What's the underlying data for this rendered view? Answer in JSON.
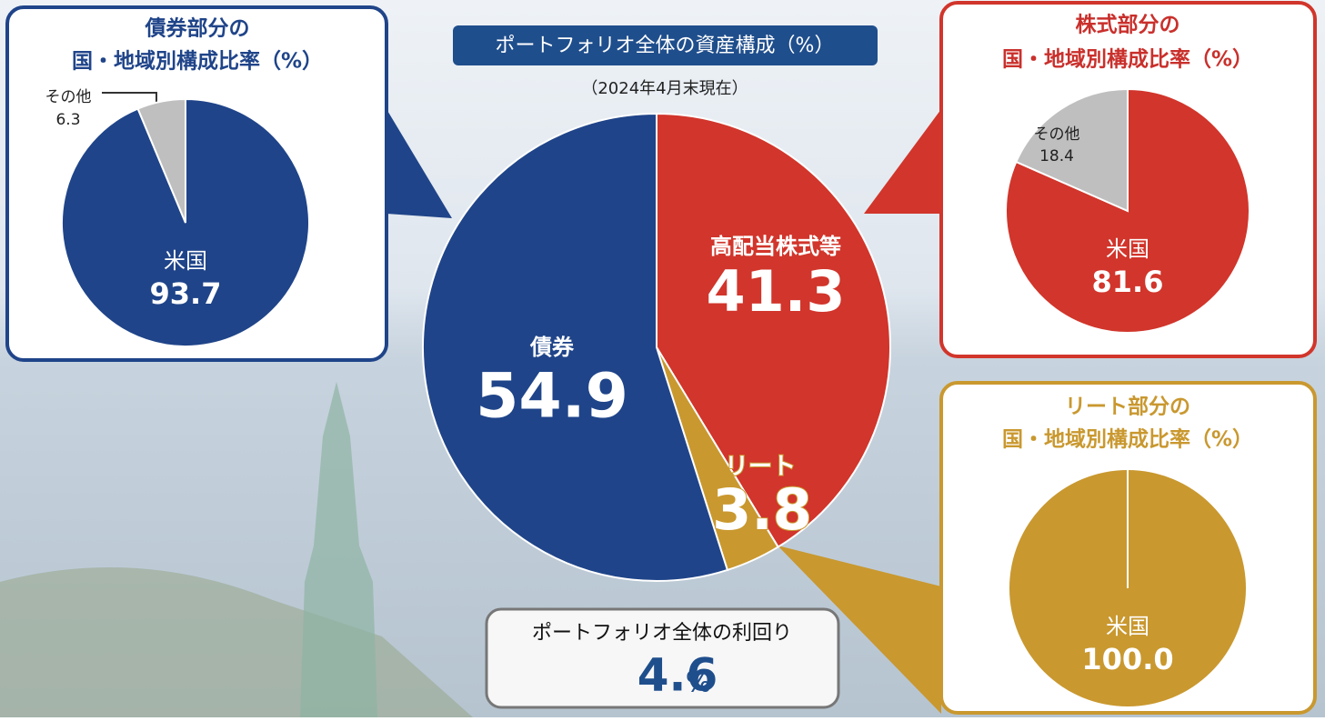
{
  "chart_data": [
    {
      "type": "pie",
      "title": "ポートフォリオ全体の資産構成（%）",
      "subtitle": "（2024年4月末現在）",
      "categories": [
        "高配当株式等",
        "リート",
        "債券"
      ],
      "values": [
        41.3,
        3.8,
        54.9
      ],
      "colors": [
        "#d1352b",
        "#c9982f",
        "#1f4489"
      ]
    },
    {
      "type": "pie",
      "title": [
        "債券部分の",
        "国・地域別構成比率（%）"
      ],
      "categories": [
        "米国",
        "その他"
      ],
      "values": [
        93.7,
        6.3
      ],
      "colors": [
        "#1f4489",
        "#bfbfbf"
      ],
      "title_color": "#1f4489"
    },
    {
      "type": "pie",
      "title": [
        "株式部分の",
        "国・地域別構成比率（%）"
      ],
      "categories": [
        "米国",
        "その他"
      ],
      "values": [
        81.6,
        18.4
      ],
      "colors": [
        "#d1352b",
        "#bfbfbf"
      ],
      "title_color": "#c9302c"
    },
    {
      "type": "pie",
      "title": [
        "リート部分の",
        "国・地域別構成比率（%）"
      ],
      "categories": [
        "米国"
      ],
      "values": [
        100
      ],
      "value_labels": [
        "100.0"
      ],
      "colors": [
        "#c9982f"
      ],
      "title_color": "#c9982f"
    }
  ],
  "yield": {
    "label": "ポートフォリオ全体の利回り",
    "value": 4.6,
    "unit": "%"
  }
}
